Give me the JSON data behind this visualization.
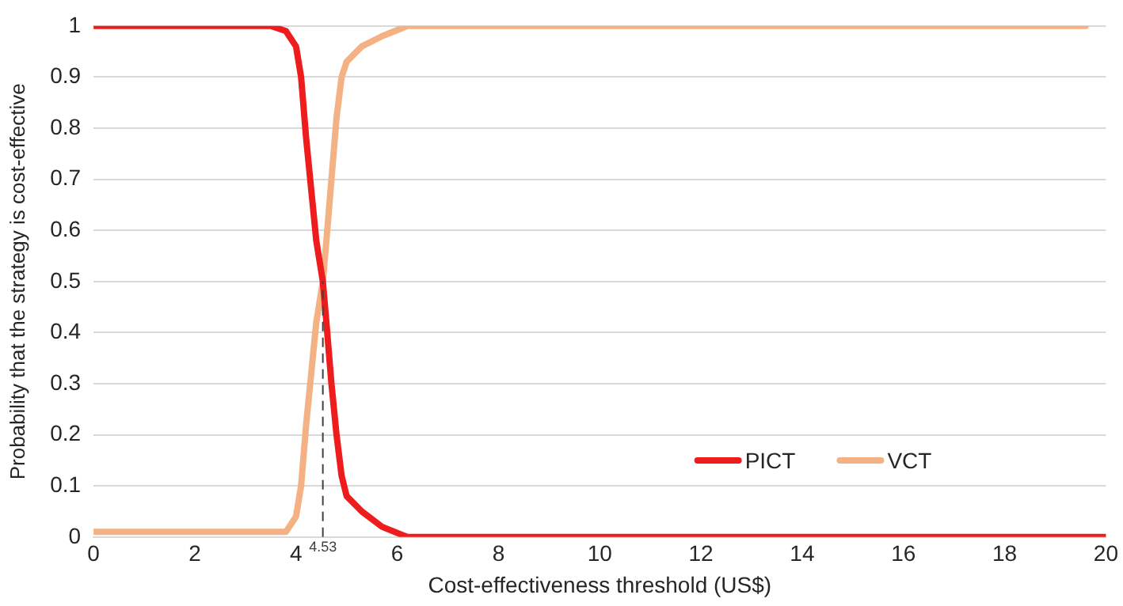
{
  "chart_data": {
    "type": "line",
    "xlabel": "Cost-effectiveness threshold (US$)",
    "ylabel": "Probability that the strategy is cost-effective",
    "xlim": [
      0,
      20
    ],
    "xticks": [
      0,
      2,
      4,
      6,
      8,
      10,
      12,
      14,
      16,
      18,
      20
    ],
    "ylim": [
      0,
      1
    ],
    "yticks": [
      0,
      0.1,
      0.2,
      0.3,
      0.4,
      0.5,
      0.6,
      0.7,
      0.8,
      0.9,
      1
    ],
    "grid": "y",
    "legend": "bottom right",
    "marker": "none",
    "line_style": "solid",
    "ref_lines": [
      {
        "axis": "x",
        "value": 4.53,
        "label": "4.53",
        "color": "#404040",
        "line_style": "dashed"
      }
    ],
    "series": [
      {
        "name": "PICT",
        "color": "#ee1c1c",
        "x": [
          0,
          3.5,
          3.8,
          4.0,
          4.1,
          4.2,
          4.3,
          4.4,
          4.53,
          4.6,
          4.7,
          4.8,
          4.9,
          5.0,
          5.3,
          5.7,
          6.2,
          20
        ],
        "values": [
          1,
          1,
          0.99,
          0.96,
          0.9,
          0.78,
          0.68,
          0.58,
          0.5,
          0.42,
          0.3,
          0.2,
          0.12,
          0.08,
          0.05,
          0.02,
          0,
          0
        ]
      },
      {
        "name": "VCT",
        "color": "#f4b183",
        "x": [
          0,
          3.5,
          3.8,
          4.0,
          4.1,
          4.2,
          4.3,
          4.4,
          4.53,
          4.6,
          4.7,
          4.8,
          4.9,
          5.0,
          5.3,
          5.7,
          6.2,
          18,
          19.6
        ],
        "values": [
          0.01,
          0.01,
          0.01,
          0.04,
          0.1,
          0.22,
          0.32,
          0.42,
          0.5,
          0.58,
          0.7,
          0.82,
          0.9,
          0.93,
          0.96,
          0.98,
          1,
          1,
          1
        ]
      }
    ]
  }
}
